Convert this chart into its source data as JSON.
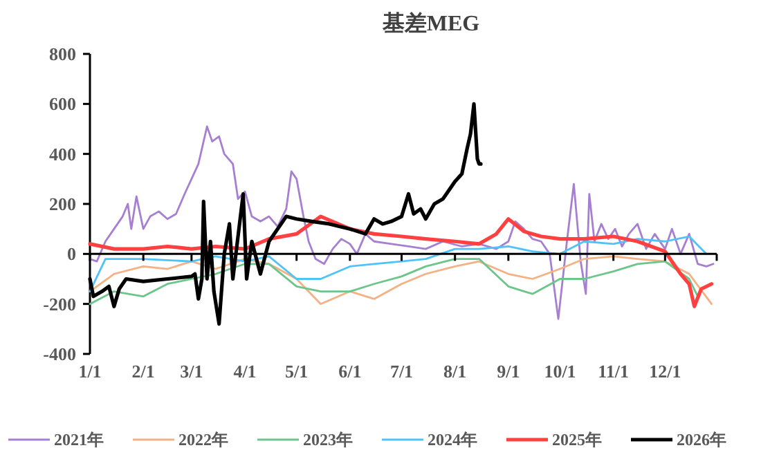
{
  "chart_data": {
    "type": "line",
    "title": "基差MEG",
    "xlim": [
      "--01-01",
      "--12-31"
    ],
    "xticks": [
      {
        "value": "--01-01",
        "label": "1/1"
      },
      {
        "value": "--02-01",
        "label": "2/1"
      },
      {
        "value": "--03-01",
        "label": "3/1"
      },
      {
        "value": "--04-01",
        "label": "4/1"
      },
      {
        "value": "--05-01",
        "label": "5/1"
      },
      {
        "value": "--06-01",
        "label": "6/1"
      },
      {
        "value": "--07-01",
        "label": "7/1"
      },
      {
        "value": "--08-01",
        "label": "8/1"
      },
      {
        "value": "--09-01",
        "label": "9/1"
      },
      {
        "value": "--10-01",
        "label": "10/1"
      },
      {
        "value": "--11-01",
        "label": "11/1"
      },
      {
        "value": "--12-01",
        "label": "12/1"
      }
    ],
    "ylim": [
      -400,
      800
    ],
    "yticks": [
      -400,
      -200,
      0,
      200,
      400,
      600,
      800
    ],
    "legend": "bottom",
    "line_style": "solid",
    "series": [
      {
        "name": "2021年",
        "color": "#a77fd0",
        "x": [
          "--01-01",
          "--01-05",
          "--01-10",
          "--01-15",
          "--01-20",
          "--01-23",
          "--01-25",
          "--01-28",
          "--02-01",
          "--02-05",
          "--02-10",
          "--02-15",
          "--02-20",
          "--02-25",
          "--03-01",
          "--03-05",
          "--03-10",
          "--03-13",
          "--03-17",
          "--03-20",
          "--03-25",
          "--03-28",
          "--04-01",
          "--04-05",
          "--04-10",
          "--04-15",
          "--04-20",
          "--04-25",
          "--04-28",
          "--05-01",
          "--05-05",
          "--05-08",
          "--05-12",
          "--05-17",
          "--05-22",
          "--05-27",
          "--06-01",
          "--06-05",
          "--06-10",
          "--06-15",
          "--06-25",
          "--07-05",
          "--07-15",
          "--07-25",
          "--08-05",
          "--08-15",
          "--08-25",
          "--09-01",
          "--09-05",
          "--09-10",
          "--09-15",
          "--09-20",
          "--09-25",
          "--09-30",
          "--10-05",
          "--10-09",
          "--10-13",
          "--10-16",
          "--10-18",
          "--10-21",
          "--10-25",
          "--10-29",
          "--11-02",
          "--11-06",
          "--11-10",
          "--11-15",
          "--11-20",
          "--11-25",
          "--12-01",
          "--12-05",
          "--12-10",
          "--12-15",
          "--12-20",
          "--12-25",
          "--12-29"
        ],
        "values": [
          -20,
          -30,
          50,
          100,
          150,
          200,
          100,
          230,
          100,
          150,
          170,
          140,
          160,
          240,
          300,
          360,
          510,
          450,
          470,
          400,
          360,
          220,
          250,
          150,
          130,
          150,
          110,
          180,
          330,
          300,
          150,
          50,
          -20,
          -40,
          20,
          60,
          40,
          0,
          80,
          50,
          40,
          30,
          20,
          50,
          30,
          40,
          20,
          50,
          130,
          100,
          60,
          50,
          0,
          -260,
          50,
          280,
          -30,
          -160,
          240,
          50,
          120,
          60,
          100,
          30,
          80,
          120,
          20,
          80,
          20,
          100,
          0,
          80,
          -40,
          -50,
          -40
        ]
      },
      {
        "name": "2022年",
        "color": "#f4b183",
        "x": [
          "--01-01",
          "--01-15",
          "--02-01",
          "--02-15",
          "--03-01",
          "--03-15",
          "--04-01",
          "--04-15",
          "--05-01",
          "--05-15",
          "--06-01",
          "--06-15",
          "--07-01",
          "--07-15",
          "--08-01",
          "--08-15",
          "--09-01",
          "--09-15",
          "--10-01",
          "--10-15",
          "--11-01",
          "--11-15",
          "--12-01",
          "--12-15",
          "--12-28"
        ],
        "values": [
          -150,
          -80,
          -50,
          -60,
          -30,
          -60,
          -20,
          -40,
          -100,
          -200,
          -150,
          -180,
          -120,
          -80,
          -50,
          -30,
          -80,
          -100,
          -60,
          -20,
          -10,
          -20,
          -30,
          -80,
          -200
        ]
      },
      {
        "name": "2023年",
        "color": "#6cc58a",
        "x": [
          "--01-01",
          "--01-15",
          "--02-01",
          "--02-15",
          "--03-01",
          "--03-15",
          "--04-01",
          "--04-15",
          "--05-01",
          "--05-15",
          "--06-01",
          "--06-15",
          "--07-01",
          "--07-15",
          "--08-01",
          "--08-15",
          "--09-01",
          "--09-15",
          "--10-01",
          "--10-15",
          "--11-01",
          "--11-15",
          "--12-01",
          "--12-15",
          "--12-20"
        ],
        "values": [
          -200,
          -150,
          -170,
          -120,
          -100,
          -80,
          -40,
          -40,
          -130,
          -150,
          -150,
          -120,
          -90,
          -50,
          -20,
          -20,
          -130,
          -160,
          -100,
          -100,
          -70,
          -40,
          -30,
          -100,
          -170
        ]
      },
      {
        "name": "2024年",
        "color": "#4fc3f7",
        "x": [
          "--01-01",
          "--01-10",
          "--02-01",
          "--03-01",
          "--03-15",
          "--04-01",
          "--04-15",
          "--05-01",
          "--05-15",
          "--06-01",
          "--06-15",
          "--07-01",
          "--07-15",
          "--08-01",
          "--08-15",
          "--09-01",
          "--09-15",
          "--10-01",
          "--10-15",
          "--11-01",
          "--11-15",
          "--12-01",
          "--12-15",
          "--12-25"
        ],
        "values": [
          -150,
          -20,
          -20,
          -30,
          -10,
          -30,
          -10,
          -100,
          -100,
          -50,
          -40,
          -30,
          -20,
          20,
          20,
          30,
          10,
          0,
          50,
          40,
          60,
          50,
          70,
          0
        ]
      },
      {
        "name": "2025年",
        "color": "#ff4040",
        "x": [
          "--01-01",
          "--01-15",
          "--02-01",
          "--02-15",
          "--03-01",
          "--03-15",
          "--04-01",
          "--04-15",
          "--05-01",
          "--05-15",
          "--06-01",
          "--06-15",
          "--07-01",
          "--07-15",
          "--08-01",
          "--08-15",
          "--08-25",
          "--09-01",
          "--09-10",
          "--09-20",
          "--10-01",
          "--10-15",
          "--11-01",
          "--11-15",
          "--12-01",
          "--12-05",
          "--12-10",
          "--12-15",
          "--12-18",
          "--12-22",
          "--12-28"
        ],
        "values": [
          40,
          20,
          20,
          30,
          20,
          30,
          20,
          60,
          80,
          150,
          100,
          80,
          70,
          60,
          50,
          40,
          80,
          140,
          90,
          70,
          60,
          60,
          70,
          50,
          10,
          -30,
          -80,
          -120,
          -210,
          -140,
          -120
        ]
      },
      {
        "name": "2026年",
        "color": "#000000",
        "x": [
          "--01-01",
          "--01-03",
          "--01-08",
          "--01-12",
          "--01-15",
          "--01-18",
          "--01-22",
          "--02-01",
          "--02-15",
          "--03-01",
          "--03-03",
          "--03-05",
          "--03-07",
          "--03-08",
          "--03-10",
          "--03-12",
          "--03-14",
          "--03-17",
          "--03-20",
          "--03-23",
          "--03-25",
          "--03-28",
          "--03-31",
          "--04-02",
          "--04-05",
          "--04-10",
          "--04-15",
          "--04-20",
          "--04-25",
          "--05-01",
          "--05-10",
          "--05-20",
          "--06-01",
          "--06-10",
          "--06-15",
          "--06-20",
          "--06-25",
          "--07-01",
          "--07-05",
          "--07-08",
          "--07-12",
          "--07-15",
          "--07-20",
          "--07-25",
          "--07-28",
          "--08-01",
          "--08-05",
          "--08-08",
          "--08-10",
          "--08-12",
          "--08-14",
          "--08-15",
          "--08-16"
        ],
        "values": [
          -100,
          -170,
          -150,
          -130,
          -210,
          -140,
          -100,
          -110,
          -100,
          -90,
          -80,
          -180,
          -100,
          210,
          -100,
          50,
          -150,
          -280,
          0,
          120,
          -100,
          70,
          240,
          -100,
          50,
          -80,
          50,
          100,
          150,
          140,
          130,
          120,
          100,
          80,
          140,
          120,
          130,
          150,
          240,
          160,
          180,
          140,
          200,
          220,
          250,
          290,
          320,
          420,
          480,
          600,
          380,
          360,
          360
        ]
      }
    ]
  }
}
